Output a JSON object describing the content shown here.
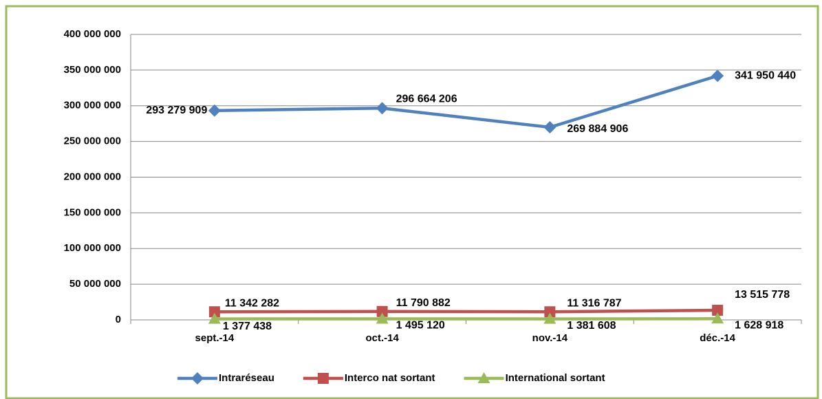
{
  "chart_data": {
    "type": "line",
    "categories": [
      "sept.-14",
      "oct.-14",
      "nov.-14",
      "déc.-14"
    ],
    "series": [
      {
        "name": "Intraréseau",
        "color": "#4f81bd",
        "marker": "diamond",
        "values": [
          293279909,
          296664206,
          269884906,
          341950440
        ],
        "value_labels": [
          "293 279 909",
          "296 664 206",
          "269 884 906",
          "341 950 440"
        ]
      },
      {
        "name": "Interco nat sortant",
        "color": "#c0504d",
        "marker": "square",
        "values": [
          11342282,
          11790882,
          11316787,
          13515778
        ],
        "value_labels": [
          "11 342 282",
          "11 790 882",
          "11 316 787",
          "13 515 778"
        ]
      },
      {
        "name": "International sortant",
        "color": "#9bbb59",
        "marker": "triangle",
        "values": [
          1377438,
          1495120,
          1381608,
          1628918
        ],
        "value_labels": [
          "1 377 438",
          "1 495 120",
          "1 381 608",
          "1 628 918"
        ]
      }
    ],
    "ylim": [
      0,
      400000000
    ],
    "yticks": [
      0,
      {
        "value": 50000000,
        "label": "50 000 000"
      },
      {
        "value": 100000000,
        "label": "100 000 000"
      },
      {
        "value": 150000000,
        "label": "150 000 000"
      },
      {
        "value": 200000000,
        "label": "200 000 000"
      },
      {
        "value": 250000000,
        "label": "250 000 000"
      },
      {
        "value": 300000000,
        "label": "300 000 000"
      },
      {
        "value": 350000000,
        "label": "350 000 000"
      },
      {
        "value": 400000000,
        "label": "400 000 000"
      }
    ],
    "grid": true,
    "legend": "bottom"
  }
}
